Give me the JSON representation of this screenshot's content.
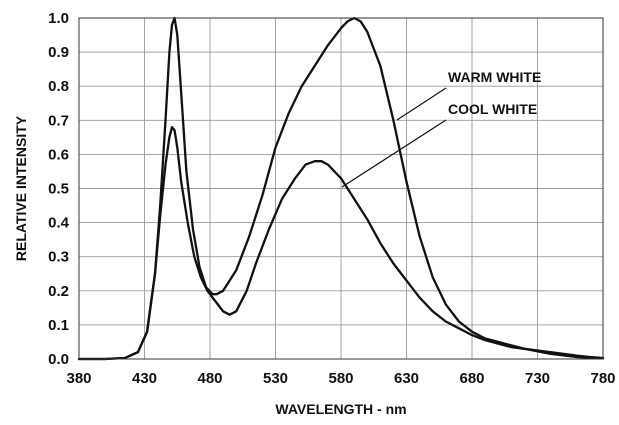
{
  "chart_data": {
    "type": "line",
    "title": "",
    "xlabel": "WAVELENGTH - nm",
    "ylabel": "RELATIVE INTENSITY",
    "xlim": [
      380,
      780
    ],
    "ylim": [
      0,
      1.0
    ],
    "x_ticks": [
      "380",
      "430",
      "480",
      "530",
      "580",
      "630",
      "680",
      "730",
      "780"
    ],
    "y_ticks": [
      "0.0",
      "0.1",
      "0.2",
      "0.3",
      "0.4",
      "0.5",
      "0.6",
      "0.7",
      "0.8",
      "0.9",
      "1.0"
    ],
    "grid": true,
    "series": [
      {
        "name": "WARM WHITE",
        "color": "#111111",
        "points": [
          [
            380,
            0.0
          ],
          [
            400,
            0.0
          ],
          [
            415,
            0.003
          ],
          [
            425,
            0.02
          ],
          [
            432,
            0.08
          ],
          [
            438,
            0.25
          ],
          [
            442,
            0.45
          ],
          [
            446,
            0.7
          ],
          [
            449,
            0.9
          ],
          [
            451,
            0.98
          ],
          [
            453,
            1.0
          ],
          [
            455,
            0.95
          ],
          [
            458,
            0.78
          ],
          [
            462,
            0.55
          ],
          [
            467,
            0.38
          ],
          [
            472,
            0.27
          ],
          [
            477,
            0.21
          ],
          [
            482,
            0.19
          ],
          [
            485,
            0.19
          ],
          [
            490,
            0.2
          ],
          [
            500,
            0.26
          ],
          [
            510,
            0.36
          ],
          [
            520,
            0.48
          ],
          [
            530,
            0.62
          ],
          [
            540,
            0.72
          ],
          [
            550,
            0.8
          ],
          [
            560,
            0.86
          ],
          [
            570,
            0.92
          ],
          [
            580,
            0.97
          ],
          [
            585,
            0.99
          ],
          [
            590,
            1.0
          ],
          [
            595,
            0.99
          ],
          [
            600,
            0.96
          ],
          [
            610,
            0.86
          ],
          [
            620,
            0.7
          ],
          [
            630,
            0.52
          ],
          [
            640,
            0.36
          ],
          [
            650,
            0.24
          ],
          [
            660,
            0.16
          ],
          [
            670,
            0.11
          ],
          [
            680,
            0.08
          ],
          [
            690,
            0.06
          ],
          [
            700,
            0.05
          ],
          [
            710,
            0.04
          ],
          [
            720,
            0.03
          ],
          [
            740,
            0.015
          ],
          [
            760,
            0.006
          ],
          [
            780,
            0.002
          ]
        ]
      },
      {
        "name": "COOL WHITE",
        "color": "#111111",
        "points": [
          [
            380,
            0.0
          ],
          [
            400,
            0.0
          ],
          [
            415,
            0.003
          ],
          [
            425,
            0.02
          ],
          [
            432,
            0.08
          ],
          [
            438,
            0.25
          ],
          [
            442,
            0.42
          ],
          [
            446,
            0.57
          ],
          [
            449,
            0.65
          ],
          [
            451,
            0.68
          ],
          [
            453,
            0.67
          ],
          [
            455,
            0.62
          ],
          [
            458,
            0.52
          ],
          [
            463,
            0.4
          ],
          [
            468,
            0.3
          ],
          [
            473,
            0.24
          ],
          [
            478,
            0.2
          ],
          [
            484,
            0.17
          ],
          [
            490,
            0.14
          ],
          [
            495,
            0.13
          ],
          [
            500,
            0.14
          ],
          [
            508,
            0.2
          ],
          [
            515,
            0.28
          ],
          [
            525,
            0.38
          ],
          [
            535,
            0.47
          ],
          [
            545,
            0.53
          ],
          [
            553,
            0.57
          ],
          [
            560,
            0.58
          ],
          [
            565,
            0.58
          ],
          [
            570,
            0.57
          ],
          [
            580,
            0.53
          ],
          [
            590,
            0.47
          ],
          [
            600,
            0.41
          ],
          [
            610,
            0.34
          ],
          [
            620,
            0.28
          ],
          [
            630,
            0.23
          ],
          [
            640,
            0.18
          ],
          [
            650,
            0.14
          ],
          [
            660,
            0.11
          ],
          [
            670,
            0.09
          ],
          [
            680,
            0.07
          ],
          [
            690,
            0.055
          ],
          [
            700,
            0.045
          ],
          [
            710,
            0.035
          ],
          [
            720,
            0.03
          ],
          [
            730,
            0.025
          ],
          [
            740,
            0.02
          ],
          [
            750,
            0.015
          ],
          [
            760,
            0.01
          ],
          [
            770,
            0.006
          ],
          [
            780,
            0.003
          ]
        ]
      }
    ]
  }
}
